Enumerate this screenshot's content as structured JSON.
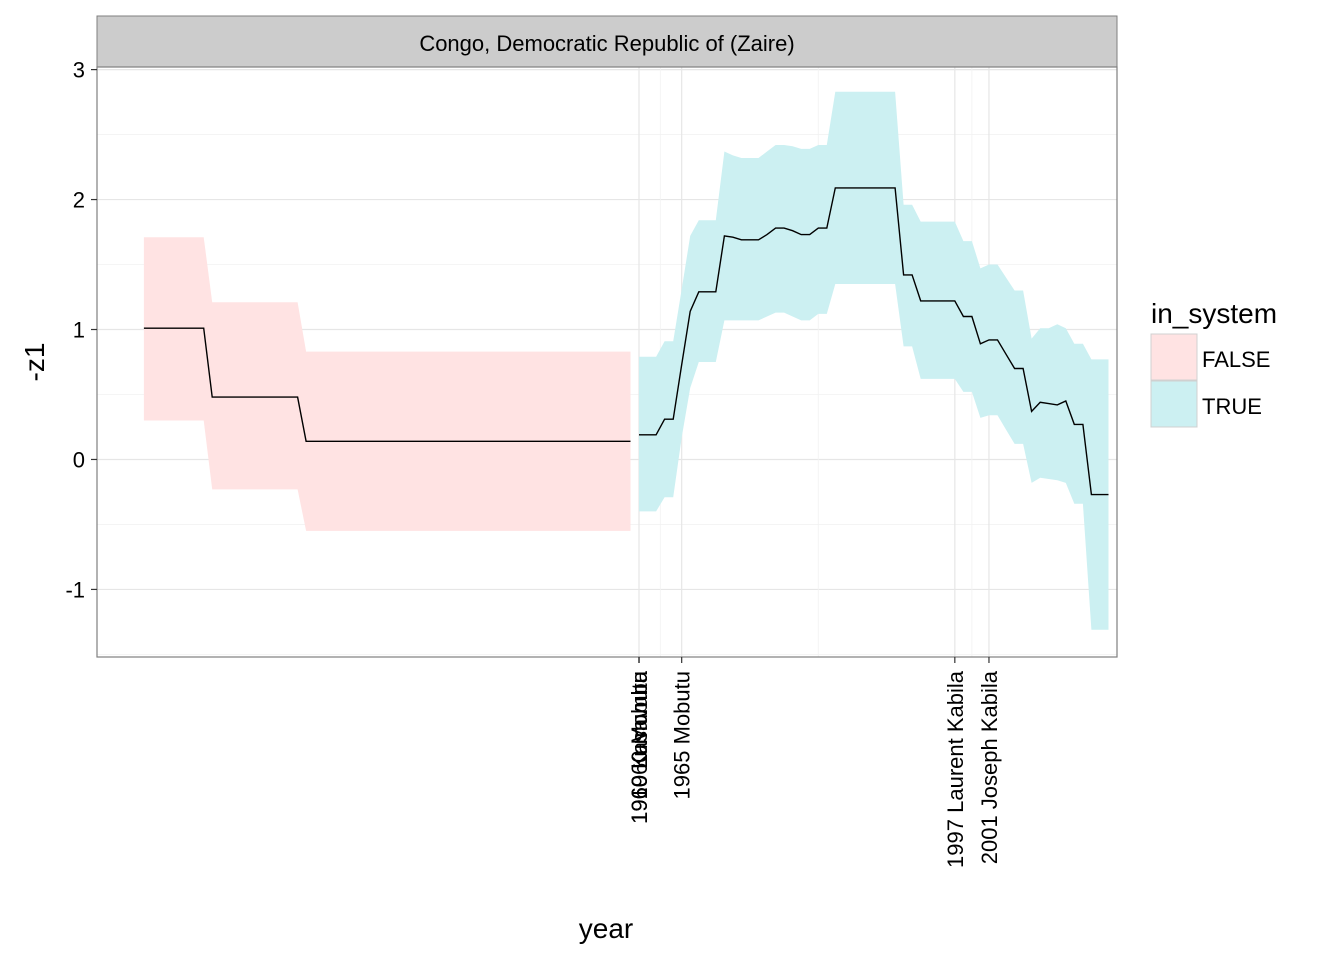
{
  "chart_data": {
    "type": "line",
    "facet_title": "Congo, Democratic Republic of (Zaire)",
    "xlabel": "year",
    "ylabel": "-z1",
    "yticks": [
      -1,
      0,
      1,
      2,
      3
    ],
    "ylim": [
      -1.52,
      3.02
    ],
    "grid": true,
    "legend": {
      "title": "in_system",
      "placement": "right",
      "entries": [
        {
          "label": "FALSE",
          "color": "#FFE3E3"
        },
        {
          "label": "TRUE",
          "color": "#CCF0F2"
        }
      ]
    },
    "x_annotations": [
      {
        "label": "1960 Kasavubu",
        "x": 1960
      },
      {
        "label": "1960 Lumumba",
        "x": 1960
      },
      {
        "label": "1960 Mobutu",
        "x": 1960
      },
      {
        "label": "1965 Mobutu",
        "x": 1965
      },
      {
        "label": "1997 Laurent Kabila",
        "x": 1997
      },
      {
        "label": "2001 Joseph Kabila",
        "x": 2001
      }
    ],
    "xlim": [
      1896.5,
      2016
    ],
    "series": [
      {
        "in_system": "FALSE",
        "line_color": "#000000",
        "ribbon_color": "#FFE3E3",
        "points": [
          {
            "x": 1902,
            "y": 1.01,
            "lo": 0.3,
            "hi": 1.71
          },
          {
            "x": 1909,
            "y": 1.01,
            "lo": 0.3,
            "hi": 1.71
          },
          {
            "x": 1910,
            "y": 0.48,
            "lo": -0.23,
            "hi": 1.21
          },
          {
            "x": 1920,
            "y": 0.48,
            "lo": -0.23,
            "hi": 1.21
          },
          {
            "x": 1921,
            "y": 0.14,
            "lo": -0.55,
            "hi": 0.83
          },
          {
            "x": 1959,
            "y": 0.14,
            "lo": -0.55,
            "hi": 0.83
          }
        ]
      },
      {
        "in_system": "TRUE",
        "line_color": "#000000",
        "ribbon_color": "#CCF0F2",
        "points": [
          {
            "x": 1960,
            "y": 0.19,
            "lo": -0.4,
            "hi": 0.79
          },
          {
            "x": 1962,
            "y": 0.19,
            "lo": -0.4,
            "hi": 0.79
          },
          {
            "x": 1963,
            "y": 0.31,
            "lo": -0.29,
            "hi": 0.91
          },
          {
            "x": 1964,
            "y": 0.31,
            "lo": -0.29,
            "hi": 0.91
          },
          {
            "x": 1965,
            "y": 0.73,
            "lo": 0.17,
            "hi": 1.31
          },
          {
            "x": 1966,
            "y": 1.14,
            "lo": 0.55,
            "hi": 1.72
          },
          {
            "x": 1967,
            "y": 1.29,
            "lo": 0.75,
            "hi": 1.84
          },
          {
            "x": 1969,
            "y": 1.29,
            "lo": 0.75,
            "hi": 1.84
          },
          {
            "x": 1970,
            "y": 1.72,
            "lo": 1.07,
            "hi": 2.37
          },
          {
            "x": 1971,
            "y": 1.71,
            "lo": 1.07,
            "hi": 2.34
          },
          {
            "x": 1972,
            "y": 1.69,
            "lo": 1.07,
            "hi": 2.32
          },
          {
            "x": 1974,
            "y": 1.69,
            "lo": 1.07,
            "hi": 2.32
          },
          {
            "x": 1975,
            "y": 1.73,
            "lo": 1.1,
            "hi": 2.37
          },
          {
            "x": 1976,
            "y": 1.78,
            "lo": 1.13,
            "hi": 2.42
          },
          {
            "x": 1977,
            "y": 1.78,
            "lo": 1.13,
            "hi": 2.42
          },
          {
            "x": 1978,
            "y": 1.76,
            "lo": 1.1,
            "hi": 2.41
          },
          {
            "x": 1979,
            "y": 1.73,
            "lo": 1.07,
            "hi": 2.39
          },
          {
            "x": 1980,
            "y": 1.73,
            "lo": 1.07,
            "hi": 2.39
          },
          {
            "x": 1981,
            "y": 1.78,
            "lo": 1.12,
            "hi": 2.42
          },
          {
            "x": 1982,
            "y": 1.78,
            "lo": 1.12,
            "hi": 2.42
          },
          {
            "x": 1983,
            "y": 2.09,
            "lo": 1.35,
            "hi": 2.83
          },
          {
            "x": 1990,
            "y": 2.09,
            "lo": 1.35,
            "hi": 2.83
          },
          {
            "x": 1991,
            "y": 1.42,
            "lo": 0.87,
            "hi": 1.96
          },
          {
            "x": 1992,
            "y": 1.42,
            "lo": 0.87,
            "hi": 1.96
          },
          {
            "x": 1993,
            "y": 1.22,
            "lo": 0.62,
            "hi": 1.83
          },
          {
            "x": 1997,
            "y": 1.22,
            "lo": 0.62,
            "hi": 1.83
          },
          {
            "x": 1998,
            "y": 1.1,
            "lo": 0.52,
            "hi": 1.68
          },
          {
            "x": 1999,
            "y": 1.1,
            "lo": 0.52,
            "hi": 1.68
          },
          {
            "x": 2000,
            "y": 0.89,
            "lo": 0.32,
            "hi": 1.47
          },
          {
            "x": 2001,
            "y": 0.92,
            "lo": 0.34,
            "hi": 1.5
          },
          {
            "x": 2002,
            "y": 0.92,
            "lo": 0.34,
            "hi": 1.5
          },
          {
            "x": 2003,
            "y": 0.81,
            "lo": 0.23,
            "hi": 1.4
          },
          {
            "x": 2004,
            "y": 0.7,
            "lo": 0.12,
            "hi": 1.3
          },
          {
            "x": 2005,
            "y": 0.7,
            "lo": 0.12,
            "hi": 1.3
          },
          {
            "x": 2006,
            "y": 0.37,
            "lo": -0.18,
            "hi": 0.93
          },
          {
            "x": 2007,
            "y": 0.44,
            "lo": -0.14,
            "hi": 1.01
          },
          {
            "x": 2008,
            "y": 0.43,
            "lo": -0.15,
            "hi": 1.01
          },
          {
            "x": 2009,
            "y": 0.42,
            "lo": -0.16,
            "hi": 1.04
          },
          {
            "x": 2010,
            "y": 0.45,
            "lo": -0.18,
            "hi": 1.01
          },
          {
            "x": 2011,
            "y": 0.27,
            "lo": -0.34,
            "hi": 0.89
          },
          {
            "x": 2012,
            "y": 0.27,
            "lo": -0.34,
            "hi": 0.89
          },
          {
            "x": 2013,
            "y": -0.27,
            "lo": -1.31,
            "hi": 0.77
          },
          {
            "x": 2015,
            "y": -0.27,
            "lo": -1.31,
            "hi": 0.77
          }
        ]
      }
    ]
  }
}
